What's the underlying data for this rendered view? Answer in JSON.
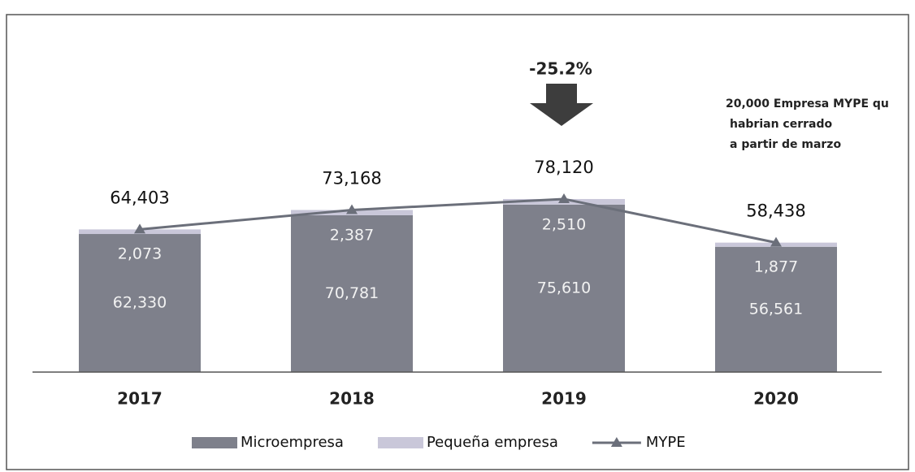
{
  "chart_data": {
    "type": "bar",
    "stacked": true,
    "categories": [
      "2017",
      "2018",
      "2019",
      "2020"
    ],
    "series": [
      {
        "name": "Microempresa",
        "color": "#7e808b",
        "values": [
          62330,
          70781,
          75610,
          56561
        ],
        "value_labels": [
          "62,330",
          "70,781",
          "75,610",
          "56,561"
        ]
      },
      {
        "name": "Pequeña empresa",
        "color": "#c9c7d9",
        "values": [
          2073,
          2387,
          2510,
          1877
        ],
        "value_labels": [
          "2,073",
          "2,387",
          "2,510",
          "1,877"
        ]
      },
      {
        "name": "MYPE",
        "type": "line",
        "color": "#6b6f7a",
        "values": [
          64403,
          73168,
          78120,
          58438
        ],
        "value_labels": [
          "64,403",
          "73,168",
          "78,120",
          "58,438"
        ]
      }
    ],
    "annotations": [
      "-25.2%",
      "20,000 Empresa MYPE qu",
      "habrian cerrado",
      "a partir de marzo"
    ]
  }
}
